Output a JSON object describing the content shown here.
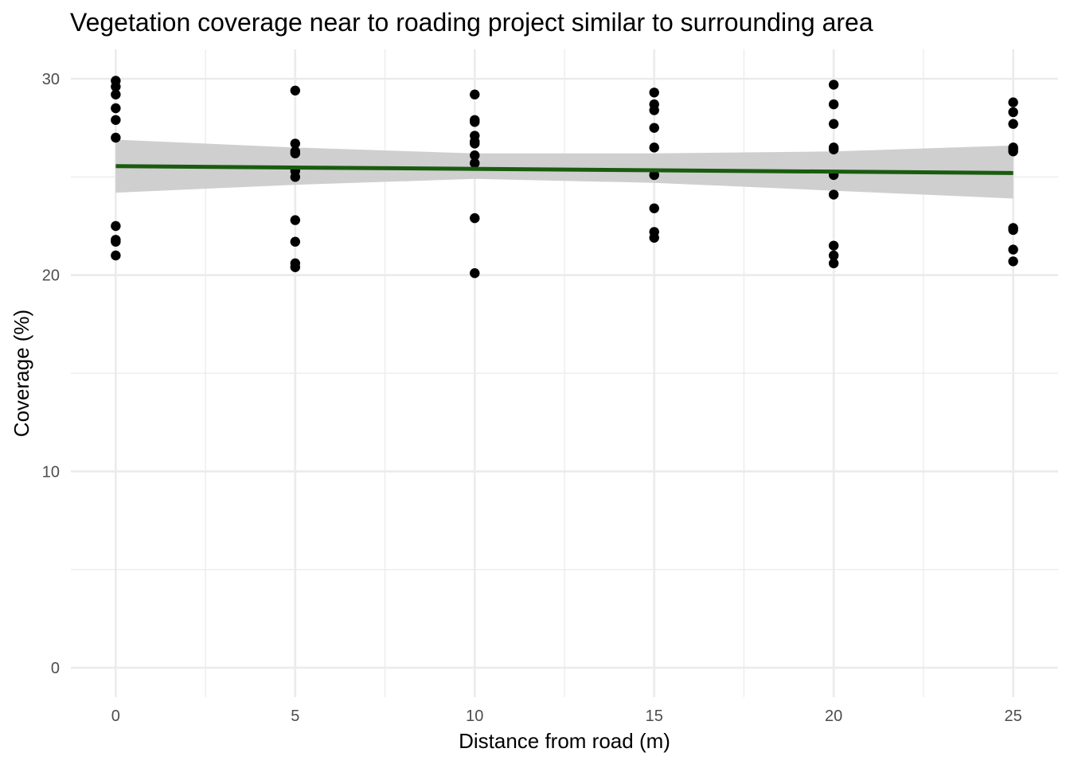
{
  "chart_data": {
    "type": "scatter",
    "title": "Vegetation coverage near to roading project similar to surrounding area",
    "xlabel": "Distance from road (m)",
    "ylabel": "Coverage (%)",
    "xlim": [
      -1.25,
      26.25
    ],
    "ylim": [
      -1.5,
      31.5
    ],
    "x_ticks": [
      0,
      5,
      10,
      15,
      20,
      25
    ],
    "x_tick_labels": [
      "0",
      "5",
      "10",
      "15",
      "20",
      "25"
    ],
    "x_minor_ticks": [
      2.5,
      7.5,
      12.5,
      17.5,
      22.5
    ],
    "y_ticks": [
      0,
      10,
      20,
      30
    ],
    "y_tick_labels": [
      "0",
      "10",
      "20",
      "30"
    ],
    "y_minor_ticks": [
      5,
      15,
      25
    ],
    "grid": true,
    "colors": {
      "points": "#000000",
      "fit_line": "#1a5c0f",
      "confidence_band": "#cccccc",
      "grid": "#ebebeb"
    },
    "series": [
      {
        "type": "scatter",
        "x": [
          0,
          0,
          0,
          0,
          0,
          0,
          0,
          0,
          0,
          0,
          5,
          5,
          5,
          5,
          5,
          5,
          5,
          5,
          5,
          5,
          10,
          10,
          10,
          10,
          10,
          10,
          10,
          10,
          10,
          10,
          15,
          15,
          15,
          15,
          15,
          15,
          15,
          15,
          15,
          15,
          20,
          20,
          20,
          20,
          20,
          20,
          20,
          20,
          20,
          20,
          25,
          25,
          25,
          25,
          25,
          25,
          25,
          25,
          25,
          25
        ],
        "y": [
          29.9,
          29.6,
          29.2,
          28.5,
          27.9,
          27.0,
          22.5,
          21.8,
          21.7,
          21.0,
          29.4,
          26.7,
          26.3,
          26.2,
          25.0,
          22.8,
          21.7,
          20.6,
          20.4,
          25.3,
          29.2,
          27.9,
          27.8,
          27.1,
          26.8,
          26.7,
          26.1,
          25.7,
          22.9,
          20.1,
          29.3,
          28.7,
          28.4,
          27.5,
          26.5,
          25.1,
          23.4,
          22.2,
          21.9,
          25.1,
          29.7,
          28.7,
          27.7,
          26.5,
          26.4,
          25.1,
          24.1,
          21.5,
          21.0,
          20.6,
          28.8,
          28.3,
          27.7,
          26.5,
          26.4,
          26.3,
          22.4,
          22.3,
          21.3,
          20.7
        ]
      },
      {
        "type": "line",
        "x": [
          0,
          25
        ],
        "y": [
          25.55,
          25.2
        ]
      },
      {
        "type": "area",
        "x": [
          0,
          5,
          10,
          15,
          20,
          25
        ],
        "upper": [
          26.9,
          26.5,
          26.2,
          26.2,
          26.3,
          26.6
        ],
        "lower": [
          24.2,
          24.6,
          24.9,
          24.7,
          24.3,
          23.9
        ]
      }
    ]
  }
}
